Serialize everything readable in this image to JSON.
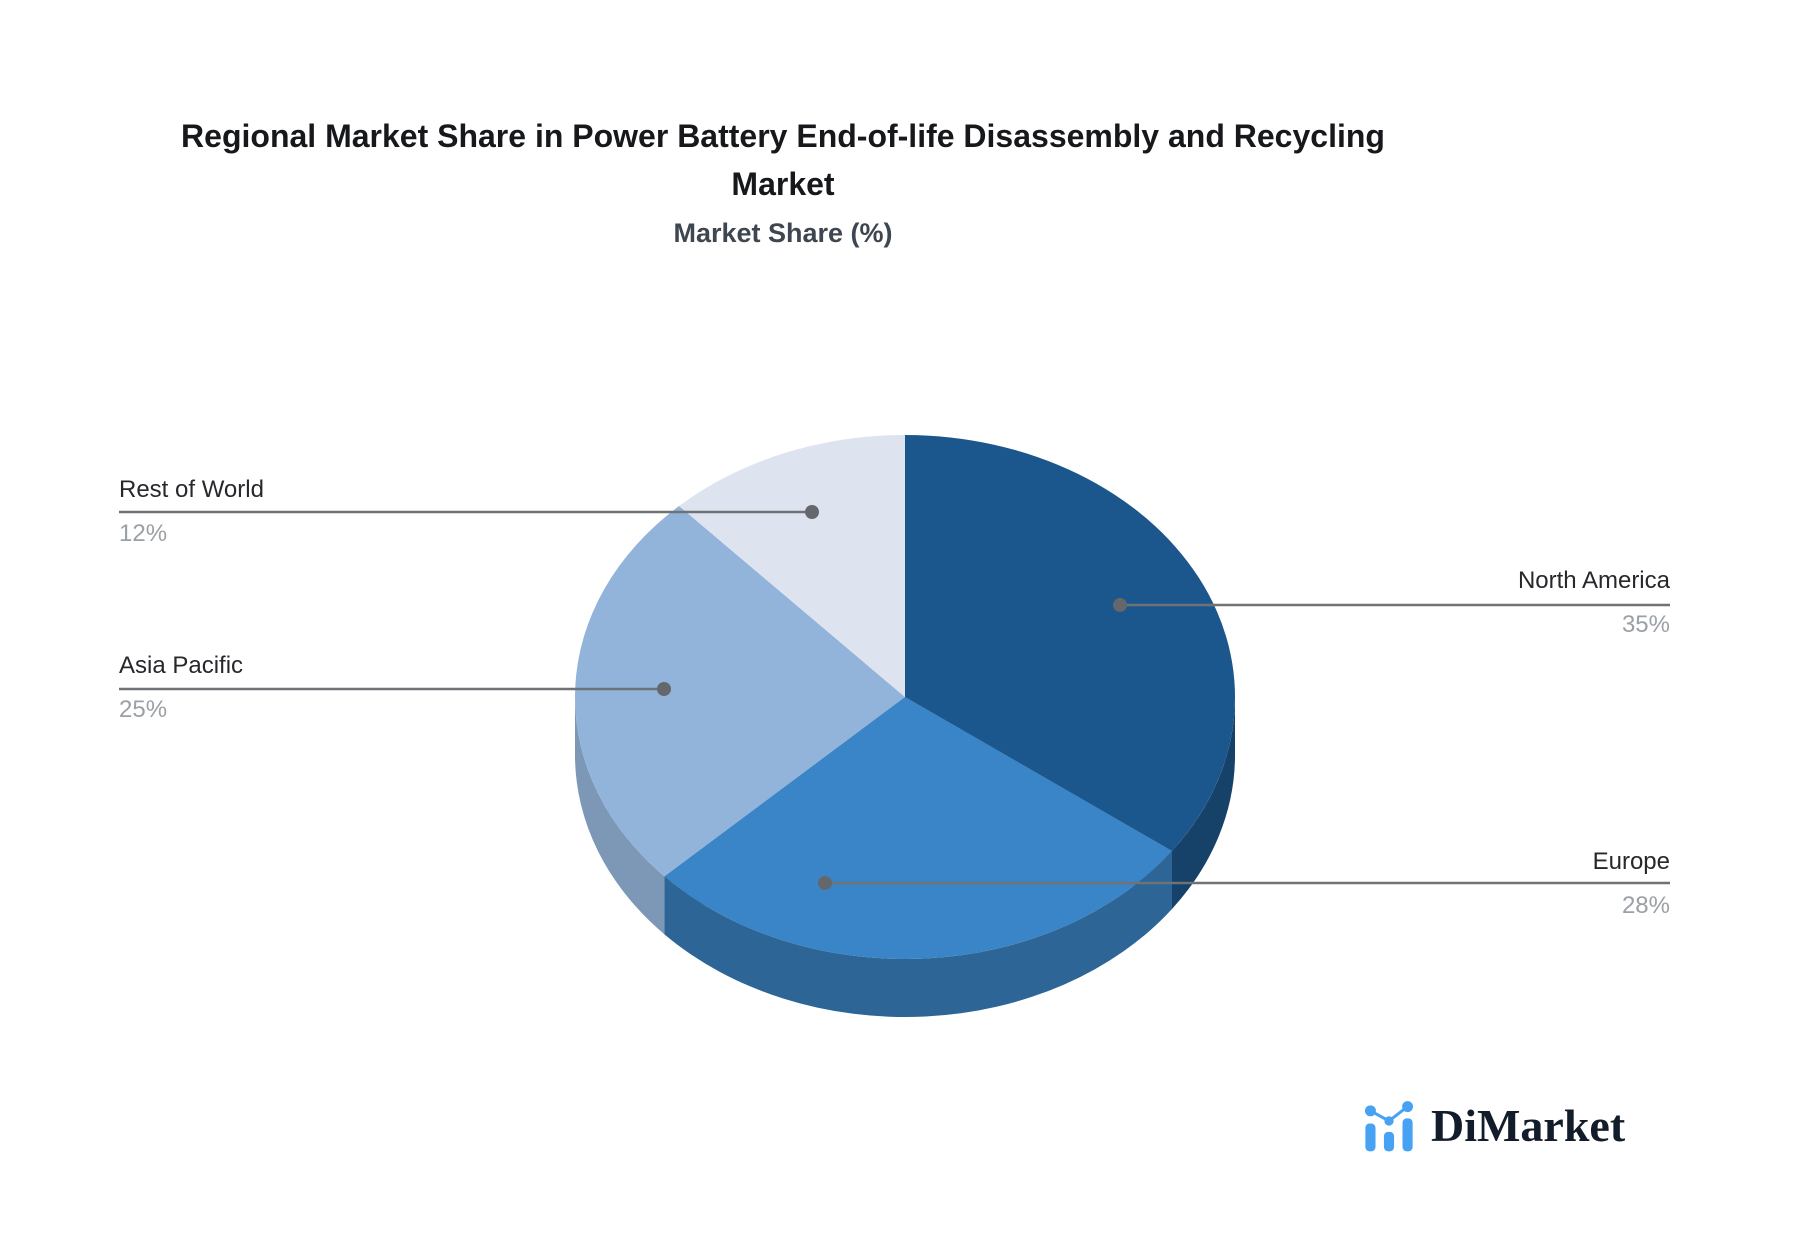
{
  "header": {
    "title_line1": "Regional Market Share in Power Battery End-of-life Disassembly and Recycling",
    "title_line2": "Market",
    "subtitle": "Market Share (%)"
  },
  "chart_data": {
    "type": "pie",
    "title": "Regional Market Share in Power Battery End-of-life Disassembly and Recycling Market",
    "subtitle": "Market Share (%)",
    "unit": "%",
    "start_angle_deg": 0,
    "clockwise": true,
    "style_3d": true,
    "legend_position": "leader-labels",
    "slices": [
      {
        "label": "North America",
        "value": 35,
        "pct_label": "35%",
        "color": "#1B578C",
        "side_color": "#164169"
      },
      {
        "label": "Europe",
        "value": 28,
        "pct_label": "28%",
        "color": "#3A85C8",
        "side_color": "#2D6596",
        "radial_color": "#336FA6"
      },
      {
        "label": "Asia Pacific",
        "value": 25,
        "pct_label": "25%",
        "color": "#92B4DA",
        "side_color": "#7C98B6",
        "radial_color": "#7B97B5"
      },
      {
        "label": "Rest of World",
        "value": 12,
        "pct_label": "12%",
        "color": "#DDE4EF"
      }
    ],
    "leader_color": "#6F7276",
    "dot_color": "#64686C"
  },
  "logo": {
    "text": "DiMarket",
    "icon": "bar-and-dots-chart-icon",
    "icon_color": "#47A2F4",
    "text_color": "#121C2B"
  }
}
